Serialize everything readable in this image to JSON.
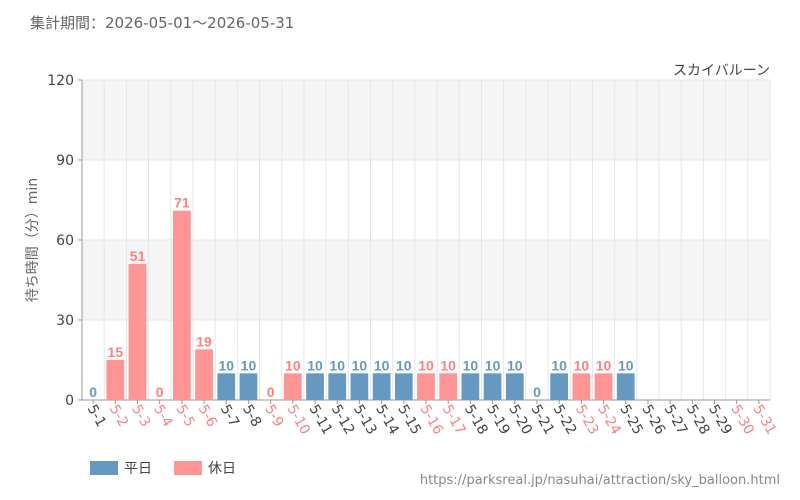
{
  "header": {
    "period": "集計期間：2026-05-01～2026-05-31"
  },
  "colors": {
    "weekday": "#6699c2",
    "holiday": "#ff9494",
    "holiday_text": "#ff8080",
    "weekday_text": "#444444"
  },
  "legend": {
    "weekday_label": "平日",
    "holiday_label": "休日"
  },
  "footer": {
    "source": "https://parksreal.jp/nasuhai/attraction/sky_balloon.html"
  },
  "chart_data": {
    "type": "bar",
    "title": "スカイバルーン",
    "ylabel": "待ち時間（分）min",
    "xlabel": "",
    "ylim": [
      0,
      120
    ],
    "yticks": [
      0,
      30,
      60,
      90,
      120
    ],
    "grid": true,
    "legend_position": "bottom-left",
    "categories": [
      "5-1",
      "5-2",
      "5-3",
      "5-4",
      "5-5",
      "5-6",
      "5-7",
      "5-8",
      "5-9",
      "5-10",
      "5-11",
      "5-12",
      "5-13",
      "5-14",
      "5-15",
      "5-16",
      "5-17",
      "5-18",
      "5-19",
      "5-20",
      "5-21",
      "5-22",
      "5-23",
      "5-24",
      "5-25",
      "5-26",
      "5-27",
      "5-28",
      "5-29",
      "5-30",
      "5-31"
    ],
    "day_type": [
      "平日",
      "休日",
      "休日",
      "休日",
      "休日",
      "休日",
      "平日",
      "平日",
      "休日",
      "休日",
      "平日",
      "平日",
      "平日",
      "平日",
      "平日",
      "休日",
      "休日",
      "平日",
      "平日",
      "平日",
      "平日",
      "平日",
      "休日",
      "休日",
      "平日",
      "平日",
      "平日",
      "平日",
      "平日",
      "休日",
      "休日"
    ],
    "values": [
      0,
      15,
      51,
      0,
      71,
      19,
      10,
      10,
      0,
      10,
      10,
      10,
      10,
      10,
      10,
      10,
      10,
      10,
      10,
      10,
      0,
      10,
      10,
      10,
      10,
      null,
      null,
      null,
      null,
      null,
      null
    ]
  }
}
